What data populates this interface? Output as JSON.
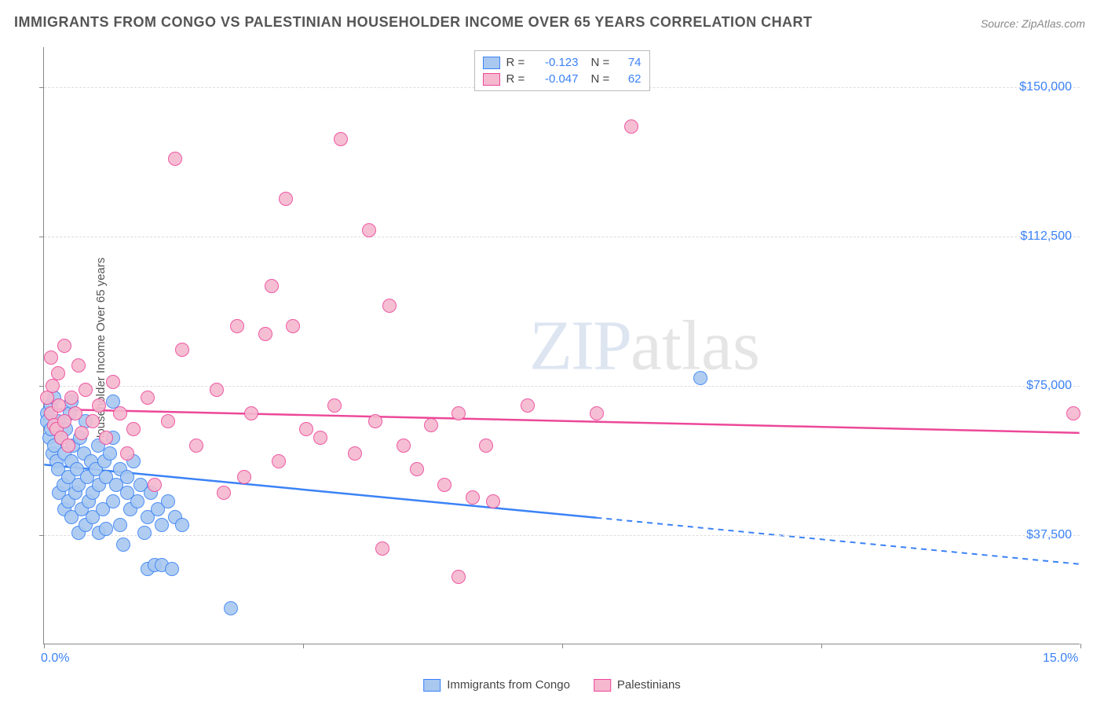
{
  "title": "IMMIGRANTS FROM CONGO VS PALESTINIAN HOUSEHOLDER INCOME OVER 65 YEARS CORRELATION CHART",
  "source_label": "Source: ZipAtlas.com",
  "ylabel": "Householder Income Over 65 years",
  "watermark": {
    "part1": "ZIP",
    "part2": "atlas"
  },
  "chart": {
    "type": "scatter",
    "background_color": "#ffffff",
    "grid_color": "#dddddd",
    "axis_color": "#888888",
    "label_color": "#555555",
    "tick_label_color": "#3b82f6",
    "title_fontsize": 18,
    "label_fontsize": 15,
    "tick_fontsize": 16,
    "marker_radius": 9,
    "marker_opacity_fill": 0.35,
    "xlim": [
      0.0,
      15.0
    ],
    "ylim": [
      10000,
      160000
    ],
    "x_ticks": [
      0.0,
      3.75,
      7.5,
      11.25,
      15.0
    ],
    "x_tick_labels_shown": {
      "0": "0.0%",
      "4": "15.0%"
    },
    "y_gridlines": [
      37500,
      75000,
      112500,
      150000
    ],
    "y_tick_labels": [
      "$37,500",
      "$75,000",
      "$112,500",
      "$150,000"
    ],
    "series": [
      {
        "name": "Immigrants from Congo",
        "stroke_color": "#3b82f6",
        "fill_color": "#a8c8f0",
        "r_value": "-0.123",
        "n_value": "74",
        "trend": {
          "y_at_x0": 55000,
          "y_at_x15": 30000,
          "solid_until_x": 8.0
        },
        "points": [
          [
            0.05,
            68000
          ],
          [
            0.05,
            66000
          ],
          [
            0.08,
            62000
          ],
          [
            0.1,
            70000
          ],
          [
            0.1,
            64000
          ],
          [
            0.12,
            58000
          ],
          [
            0.15,
            72000
          ],
          [
            0.15,
            60000
          ],
          [
            0.18,
            56000
          ],
          [
            0.2,
            54000
          ],
          [
            0.2,
            66000
          ],
          [
            0.22,
            48000
          ],
          [
            0.25,
            62000
          ],
          [
            0.28,
            50000
          ],
          [
            0.3,
            58000
          ],
          [
            0.3,
            44000
          ],
          [
            0.32,
            64000
          ],
          [
            0.35,
            52000
          ],
          [
            0.35,
            46000
          ],
          [
            0.38,
            68000
          ],
          [
            0.4,
            42000
          ],
          [
            0.4,
            56000
          ],
          [
            0.42,
            60000
          ],
          [
            0.45,
            48000
          ],
          [
            0.48,
            54000
          ],
          [
            0.5,
            50000
          ],
          [
            0.5,
            38000
          ],
          [
            0.52,
            62000
          ],
          [
            0.55,
            44000
          ],
          [
            0.58,
            58000
          ],
          [
            0.6,
            40000
          ],
          [
            0.6,
            66000
          ],
          [
            0.62,
            52000
          ],
          [
            0.65,
            46000
          ],
          [
            0.68,
            56000
          ],
          [
            0.7,
            48000
          ],
          [
            0.7,
            42000
          ],
          [
            0.75,
            54000
          ],
          [
            0.78,
            60000
          ],
          [
            0.8,
            38000
          ],
          [
            0.8,
            50000
          ],
          [
            0.85,
            44000
          ],
          [
            0.88,
            56000
          ],
          [
            0.9,
            52000
          ],
          [
            0.9,
            39000
          ],
          [
            0.95,
            58000
          ],
          [
            1.0,
            46000
          ],
          [
            1.0,
            62000
          ],
          [
            1.05,
            50000
          ],
          [
            1.1,
            54000
          ],
          [
            1.1,
            40000
          ],
          [
            1.15,
            35000
          ],
          [
            1.2,
            48000
          ],
          [
            1.2,
            52000
          ],
          [
            1.25,
            44000
          ],
          [
            1.3,
            56000
          ],
          [
            1.35,
            46000
          ],
          [
            1.4,
            50000
          ],
          [
            1.45,
            38000
          ],
          [
            1.5,
            29000
          ],
          [
            1.5,
            42000
          ],
          [
            1.55,
            48000
          ],
          [
            1.6,
            30000
          ],
          [
            1.65,
            44000
          ],
          [
            1.7,
            40000
          ],
          [
            1.7,
            30000
          ],
          [
            1.8,
            46000
          ],
          [
            1.85,
            29000
          ],
          [
            1.9,
            42000
          ],
          [
            2.0,
            40000
          ],
          [
            2.7,
            19000
          ],
          [
            9.5,
            77000
          ],
          [
            0.4,
            71000
          ],
          [
            1.0,
            71000
          ]
        ]
      },
      {
        "name": "Palestinians",
        "stroke_color": "#ec4899",
        "fill_color": "#f5b8cf",
        "r_value": "-0.047",
        "n_value": "62",
        "trend": {
          "y_at_x0": 69000,
          "y_at_x15": 63000,
          "solid_until_x": 15.0
        },
        "points": [
          [
            0.05,
            72000
          ],
          [
            0.1,
            68000
          ],
          [
            0.1,
            82000
          ],
          [
            0.12,
            75000
          ],
          [
            0.15,
            65000
          ],
          [
            0.18,
            64000
          ],
          [
            0.2,
            78000
          ],
          [
            0.22,
            70000
          ],
          [
            0.25,
            62000
          ],
          [
            0.3,
            85000
          ],
          [
            0.3,
            66000
          ],
          [
            0.35,
            60000
          ],
          [
            0.4,
            72000
          ],
          [
            0.45,
            68000
          ],
          [
            0.5,
            80000
          ],
          [
            0.55,
            63000
          ],
          [
            0.6,
            74000
          ],
          [
            0.7,
            66000
          ],
          [
            0.8,
            70000
          ],
          [
            0.9,
            62000
          ],
          [
            1.0,
            76000
          ],
          [
            1.1,
            68000
          ],
          [
            1.2,
            58000
          ],
          [
            1.3,
            64000
          ],
          [
            1.5,
            72000
          ],
          [
            1.6,
            50000
          ],
          [
            1.8,
            66000
          ],
          [
            1.9,
            132000
          ],
          [
            2.0,
            84000
          ],
          [
            2.2,
            60000
          ],
          [
            2.5,
            74000
          ],
          [
            2.6,
            48000
          ],
          [
            2.8,
            90000
          ],
          [
            2.9,
            52000
          ],
          [
            3.0,
            68000
          ],
          [
            3.2,
            88000
          ],
          [
            3.3,
            100000
          ],
          [
            3.4,
            56000
          ],
          [
            3.5,
            122000
          ],
          [
            3.6,
            90000
          ],
          [
            3.8,
            64000
          ],
          [
            4.0,
            62000
          ],
          [
            4.2,
            70000
          ],
          [
            4.3,
            137000
          ],
          [
            4.5,
            58000
          ],
          [
            4.7,
            114000
          ],
          [
            4.8,
            66000
          ],
          [
            4.9,
            34000
          ],
          [
            5.0,
            95000
          ],
          [
            5.2,
            60000
          ],
          [
            5.4,
            54000
          ],
          [
            5.6,
            65000
          ],
          [
            5.8,
            50000
          ],
          [
            6.0,
            27000
          ],
          [
            6.0,
            68000
          ],
          [
            6.2,
            47000
          ],
          [
            6.4,
            60000
          ],
          [
            6.5,
            46000
          ],
          [
            7.0,
            70000
          ],
          [
            8.0,
            68000
          ],
          [
            8.5,
            140000
          ],
          [
            14.9,
            68000
          ]
        ]
      }
    ]
  },
  "top_legend": {
    "r_label": "R =",
    "n_label": "N ="
  },
  "bottom_legend_labels": [
    "Immigrants from Congo",
    "Palestinians"
  ]
}
